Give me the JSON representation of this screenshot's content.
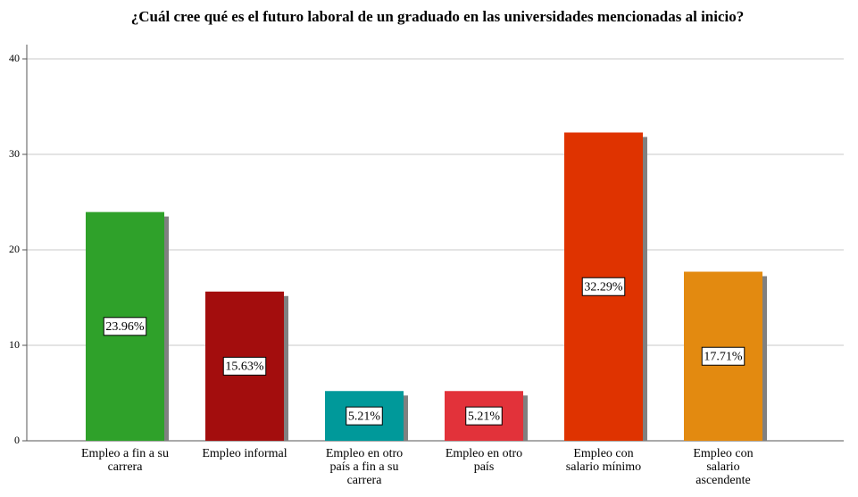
{
  "chart_data": {
    "type": "bar",
    "title": "¿Cuál cree qué es el futuro laboral de un graduado en las universidades mencionadas al inicio?",
    "categories": [
      "Empleo a fin a su carrera",
      "Empleo informal",
      "Empleo en otro país a fin a su carrera",
      "Empleo en otro país",
      "Empleo con salario mínimo",
      "Empleo con salario ascendente"
    ],
    "values": [
      23.96,
      15.63,
      5.21,
      5.21,
      32.29,
      17.71
    ],
    "value_labels": [
      "23.96%",
      "15.63%",
      "5.21%",
      "5.21%",
      "32.29%",
      "17.71%"
    ],
    "colors": [
      "#2fa12a",
      "#a30d0d",
      "#00999a",
      "#e2323a",
      "#df3300",
      "#e38a10"
    ],
    "ylim": [
      0,
      40
    ],
    "yticks": [
      0,
      10,
      20,
      30,
      40
    ],
    "grid": true
  }
}
